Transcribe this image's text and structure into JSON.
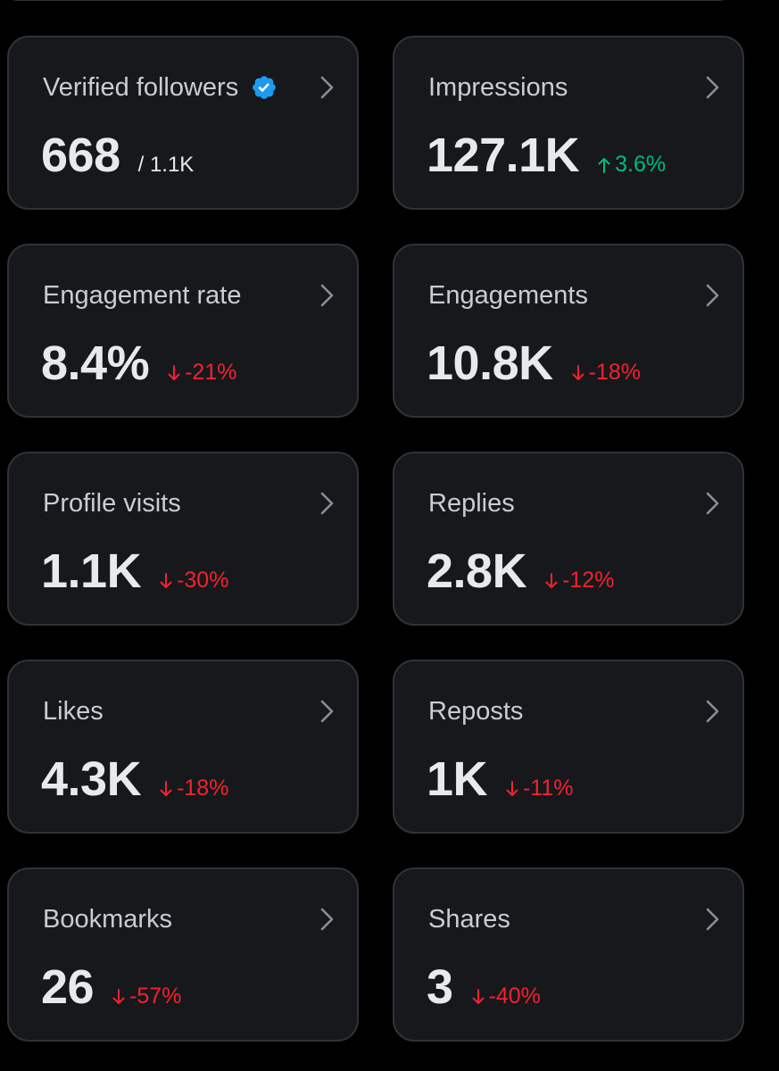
{
  "colors": {
    "background": "#000000",
    "card_background": "#16181c",
    "card_border": "#2f3336",
    "label": "#c9cdd1",
    "value": "#e7e9ea",
    "negative": "#f4212e",
    "positive": "#00ba7c",
    "verified": "#1d9bf0"
  },
  "cards": [
    {
      "label": "Verified followers",
      "value": "668",
      "sub": "/ 1.1K",
      "icon": "verified-badge-icon"
    },
    {
      "label": "Impressions",
      "value": "127.1K",
      "delta": "3.6%",
      "delta_direction": "up"
    },
    {
      "label": "Engagement rate",
      "value": "8.4%",
      "delta": "-21%",
      "delta_direction": "down"
    },
    {
      "label": "Engagements",
      "value": "10.8K",
      "delta": "-18%",
      "delta_direction": "down"
    },
    {
      "label": "Profile visits",
      "value": "1.1K",
      "delta": "-30%",
      "delta_direction": "down"
    },
    {
      "label": "Replies",
      "value": "2.8K",
      "delta": "-12%",
      "delta_direction": "down"
    },
    {
      "label": "Likes",
      "value": "4.3K",
      "delta": "-18%",
      "delta_direction": "down"
    },
    {
      "label": "Reposts",
      "value": "1K",
      "delta": "-11%",
      "delta_direction": "down"
    },
    {
      "label": "Bookmarks",
      "value": "26",
      "delta": "-57%",
      "delta_direction": "down"
    },
    {
      "label": "Shares",
      "value": "3",
      "delta": "-40%",
      "delta_direction": "down"
    }
  ]
}
